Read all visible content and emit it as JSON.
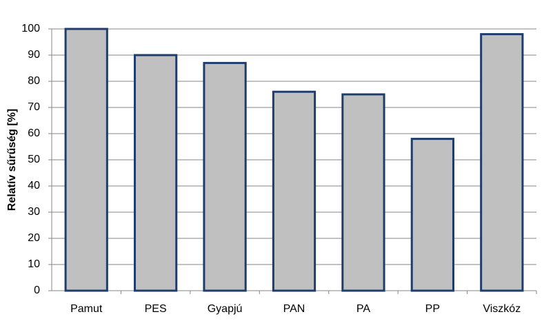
{
  "chart_data": {
    "type": "bar",
    "y_label": "Relatív sűrűség [%]",
    "categories": [
      "Pamut",
      "PES",
      "Gyapjú",
      "PAN",
      "PA",
      "PP",
      "Viszkóz"
    ],
    "values": [
      100,
      90,
      87,
      76,
      75,
      58,
      98
    ],
    "color": "#c0c0c0",
    "ylim": [
      0,
      100
    ],
    "yticks": [
      0,
      10,
      20,
      30,
      40,
      50,
      60,
      70,
      80,
      90,
      100
    ],
    "grid": true
  }
}
